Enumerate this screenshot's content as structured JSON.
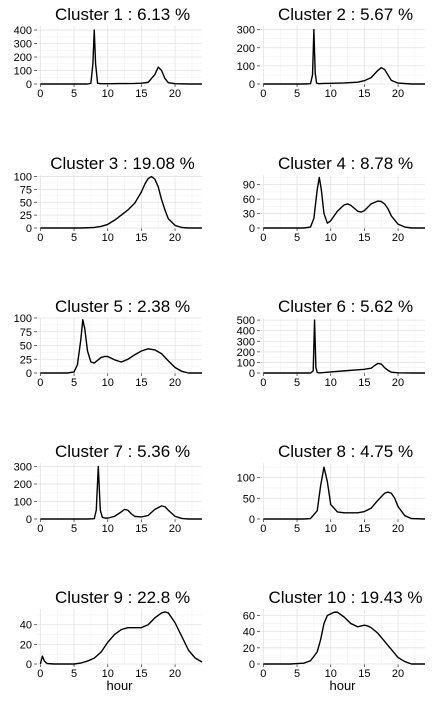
{
  "chart_data": [
    {
      "type": "line",
      "title": "Cluster  1  :  6.13 %",
      "xlabel": "",
      "xlim": [
        -0.5,
        24
      ],
      "xticks": [
        0,
        5,
        10,
        15,
        20
      ],
      "ylim": [
        0,
        430
      ],
      "yticks": [
        0,
        100,
        200,
        300,
        400
      ],
      "x": [
        0,
        2,
        4,
        6,
        7,
        7.5,
        7.8,
        8.0,
        8.2,
        8.5,
        9,
        10,
        12,
        14,
        15,
        16,
        17,
        17.5,
        18,
        18.5,
        19,
        20,
        22,
        24
      ],
      "y": [
        0,
        0,
        0,
        0,
        0,
        5,
        150,
        400,
        150,
        5,
        2,
        2,
        3,
        4,
        6,
        12,
        70,
        125,
        100,
        40,
        10,
        2,
        0,
        0
      ]
    },
    {
      "type": "line",
      "title": "Cluster  2  :  5.67 %",
      "xlabel": "",
      "xlim": [
        -0.5,
        24
      ],
      "xticks": [
        0,
        5,
        10,
        15,
        20
      ],
      "ylim": [
        0,
        320
      ],
      "yticks": [
        0,
        100,
        200,
        300
      ],
      "x": [
        0,
        2,
        4,
        6,
        7,
        7.3,
        7.5,
        7.7,
        7.9,
        8.2,
        9,
        10,
        12,
        14,
        15,
        16,
        17,
        17.5,
        18,
        18.5,
        19,
        20,
        22,
        24
      ],
      "y": [
        0,
        0,
        0,
        0,
        2,
        50,
        300,
        60,
        5,
        2,
        3,
        4,
        6,
        10,
        18,
        35,
        75,
        90,
        80,
        50,
        20,
        5,
        0,
        0
      ]
    },
    {
      "type": "line",
      "title": "Cluster  3  :  19.08 %",
      "xlabel": "",
      "xlim": [
        -0.5,
        24
      ],
      "xticks": [
        0,
        5,
        10,
        15,
        20
      ],
      "ylim": [
        0,
        103
      ],
      "yticks": [
        0,
        25,
        50,
        75,
        100
      ],
      "x": [
        0,
        2,
        4,
        6,
        7,
        8,
        9,
        10,
        11,
        12,
        13,
        14,
        15,
        15.5,
        16,
        16.5,
        17,
        17.5,
        18,
        18.5,
        19,
        20,
        21,
        22,
        24
      ],
      "y": [
        0,
        0,
        0,
        0,
        0.5,
        1,
        3,
        7,
        15,
        25,
        35,
        48,
        70,
        85,
        96,
        100,
        95,
        80,
        55,
        35,
        18,
        5,
        1,
        0,
        0
      ]
    },
    {
      "type": "line",
      "title": "Cluster  4  :  8.78 %",
      "xlabel": "",
      "xlim": [
        -0.5,
        24
      ],
      "xticks": [
        0,
        5,
        10,
        15,
        20
      ],
      "ylim": [
        0,
        110
      ],
      "yticks": [
        0,
        30,
        60,
        90
      ],
      "x": [
        0,
        2,
        4,
        6,
        7,
        7.5,
        8,
        8.3,
        8.6,
        9,
        9.5,
        10,
        11,
        12,
        12.5,
        13,
        14,
        14.5,
        15,
        16,
        17,
        17.5,
        18,
        18.5,
        19,
        20,
        21,
        22,
        24
      ],
      "y": [
        0,
        0,
        0,
        0,
        2,
        20,
        80,
        105,
        80,
        30,
        10,
        15,
        35,
        48,
        50,
        47,
        35,
        33,
        36,
        50,
        56,
        55,
        50,
        40,
        25,
        8,
        2,
        0,
        0
      ]
    },
    {
      "type": "line",
      "title": "Cluster  5  :  2.38 %",
      "xlabel": "",
      "xlim": [
        -0.5,
        24
      ],
      "xticks": [
        0,
        5,
        10,
        15,
        20
      ],
      "ylim": [
        0,
        100
      ],
      "yticks": [
        0,
        25,
        50,
        75,
        100
      ],
      "x": [
        0,
        2,
        4,
        5,
        5.5,
        6,
        6.3,
        6.6,
        7,
        7.5,
        8,
        9,
        9.5,
        10,
        11,
        12,
        13,
        14,
        15,
        16,
        17,
        18,
        19,
        20,
        21,
        22,
        24
      ],
      "y": [
        0,
        0,
        0,
        2,
        15,
        60,
        97,
        80,
        40,
        20,
        18,
        28,
        30,
        30,
        24,
        20,
        25,
        33,
        40,
        44,
        42,
        35,
        22,
        10,
        3,
        0,
        0
      ]
    },
    {
      "type": "line",
      "title": "Cluster  6  :  5.62 %",
      "xlabel": "",
      "xlim": [
        -0.5,
        24
      ],
      "xticks": [
        0,
        5,
        10,
        15,
        20
      ],
      "ylim": [
        0,
        520
      ],
      "yticks": [
        0,
        100,
        200,
        300,
        400,
        500
      ],
      "x": [
        0,
        2,
        4,
        6,
        7,
        7.4,
        7.6,
        7.8,
        8.0,
        8.2,
        8.5,
        10,
        12,
        14,
        15,
        16,
        16.5,
        17,
        17.5,
        18,
        18.5,
        19,
        20,
        22,
        24
      ],
      "y": [
        0,
        0,
        0,
        0,
        0,
        20,
        500,
        50,
        5,
        2,
        2,
        10,
        20,
        30,
        35,
        45,
        70,
        90,
        85,
        50,
        25,
        8,
        2,
        0,
        0
      ]
    },
    {
      "type": "line",
      "title": "Cluster  7  :  5.36 %",
      "xlabel": "",
      "xlim": [
        -0.5,
        24
      ],
      "xticks": [
        0,
        5,
        10,
        15,
        20
      ],
      "ylim": [
        0,
        320
      ],
      "yticks": [
        0,
        100,
        200,
        300
      ],
      "x": [
        0,
        2,
        4,
        6,
        7,
        8,
        8.3,
        8.6,
        8.9,
        9.2,
        9.6,
        10,
        11,
        12,
        12.5,
        13,
        13.5,
        14,
        15,
        16,
        17,
        18,
        18.5,
        19,
        20,
        21,
        22,
        24
      ],
      "y": [
        0,
        0,
        0,
        0,
        0,
        2,
        50,
        300,
        50,
        10,
        5,
        5,
        15,
        40,
        55,
        50,
        30,
        15,
        12,
        20,
        55,
        75,
        70,
        50,
        15,
        3,
        0,
        0
      ]
    },
    {
      "type": "line",
      "title": "Cluster  8  :  4.75 %",
      "xlabel": "",
      "xlim": [
        -0.5,
        24
      ],
      "xticks": [
        0,
        5,
        10,
        15,
        20
      ],
      "ylim": [
        0,
        135
      ],
      "yticks": [
        0,
        50,
        100
      ],
      "x": [
        0,
        2,
        4,
        6,
        7,
        8,
        8.5,
        9,
        9.5,
        10,
        11,
        12,
        13,
        14,
        15,
        16,
        17,
        18,
        18.5,
        19,
        19.5,
        20,
        21,
        22,
        24
      ],
      "y": [
        0,
        0,
        0,
        0,
        1,
        20,
        80,
        125,
        90,
        35,
        17,
        15,
        15,
        15,
        18,
        26,
        45,
        62,
        65,
        62,
        50,
        30,
        8,
        1,
        0
      ]
    },
    {
      "type": "line",
      "title": "Cluster  9  :  22.8 %",
      "xlabel": "hour",
      "xlim": [
        -0.5,
        24
      ],
      "xticks": [
        0,
        5,
        10,
        15,
        20
      ],
      "ylim": [
        0,
        56
      ],
      "yticks": [
        0,
        20,
        40
      ],
      "x": [
        0,
        0.3,
        0.6,
        1,
        2,
        3,
        4,
        5,
        6,
        7,
        8,
        9,
        10,
        11,
        12,
        13,
        14,
        15,
        16,
        17,
        18,
        18.5,
        19,
        20,
        21,
        22,
        23,
        24
      ],
      "y": [
        0,
        8,
        3,
        0.5,
        0,
        0,
        0,
        0,
        1,
        3,
        6,
        12,
        22,
        30,
        35,
        37,
        37,
        37,
        40,
        47,
        52,
        53,
        52,
        42,
        28,
        14,
        6,
        2
      ]
    },
    {
      "type": "line",
      "title": "Cluster  10  :  19.43 %",
      "xlabel": "hour",
      "xlim": [
        -0.5,
        24
      ],
      "xticks": [
        0,
        5,
        10,
        15,
        20
      ],
      "ylim": [
        0,
        68
      ],
      "yticks": [
        0,
        20,
        40,
        60
      ],
      "x": [
        0,
        2,
        4,
        5,
        6,
        7,
        8,
        8.5,
        9,
        9.5,
        10,
        10.5,
        11,
        12,
        13,
        14,
        15,
        15.5,
        16,
        17,
        18,
        19,
        20,
        21,
        22,
        24
      ],
      "y": [
        0,
        0,
        0,
        0.5,
        1,
        4,
        15,
        30,
        50,
        60,
        62,
        64,
        64,
        58,
        50,
        46,
        48,
        47,
        45,
        38,
        28,
        18,
        8,
        3,
        0,
        0
      ]
    }
  ]
}
